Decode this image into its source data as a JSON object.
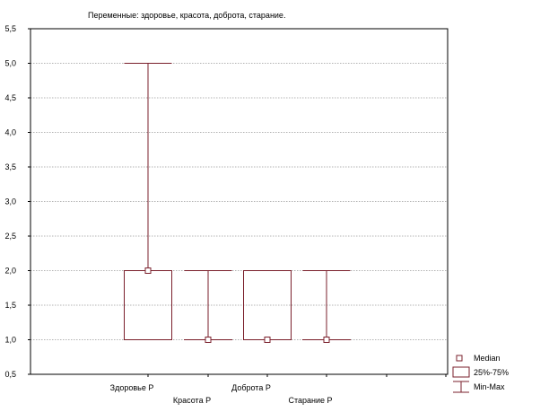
{
  "chart_data": {
    "type": "boxplot",
    "title": "Переменные: здоровье, красота, доброта, старание.",
    "ylim": [
      0.5,
      5.5
    ],
    "yticks": [
      "0,5",
      "1,0",
      "1,5",
      "2,0",
      "2,5",
      "3,0",
      "3,5",
      "4,0",
      "4,5",
      "5,0",
      "5,5"
    ],
    "grid": true,
    "legend_position": "bottom-right",
    "series_color": "#7a1f2b",
    "categories": [
      "Здоровье Р",
      "Красота Р",
      "Доброта Р",
      "Старание Р"
    ],
    "boxes": [
      {
        "category": "Здоровье Р",
        "median": 2.0,
        "q1": 1.0,
        "q3": 2.0,
        "min": 1.0,
        "max": 5.0
      },
      {
        "category": "Красота Р",
        "median": 1.0,
        "q1": 1.0,
        "q3": 1.0,
        "min": 1.0,
        "max": 2.0
      },
      {
        "category": "Доброта Р",
        "median": 1.0,
        "q1": 1.0,
        "q3": 2.0,
        "min": 1.0,
        "max": 2.0
      },
      {
        "category": "Старание Р",
        "median": 1.0,
        "q1": 1.0,
        "q3": 1.0,
        "min": 1.0,
        "max": 2.0
      }
    ],
    "legend": [
      "Median",
      "25%-75%",
      "Min-Max"
    ]
  }
}
